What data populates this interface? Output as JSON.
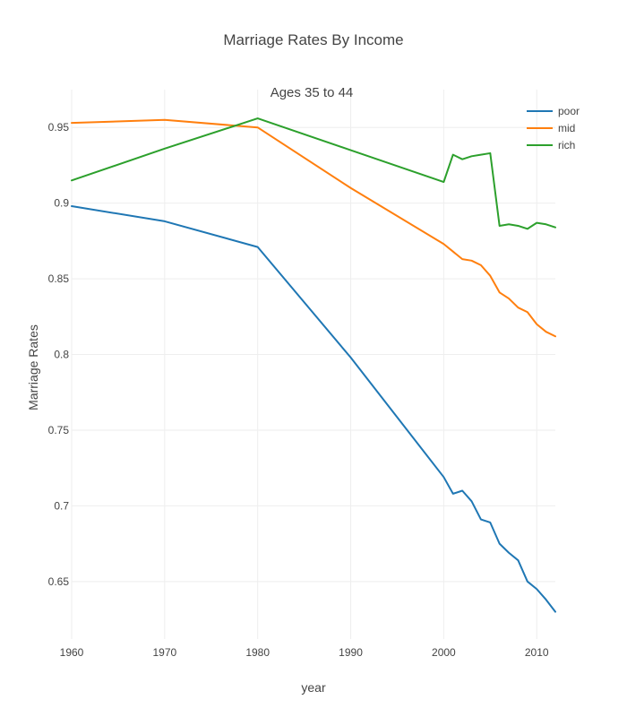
{
  "chart_data": {
    "type": "line",
    "title": "Marriage Rates By Income",
    "subtitle": "Ages 35 to 44",
    "xlabel": "year",
    "ylabel": "Marriage Rates",
    "xlim": [
      1960,
      2012
    ],
    "ylim": [
      0.612,
      0.975
    ],
    "x_ticks": [
      1960,
      1970,
      1980,
      1990,
      2000,
      2010
    ],
    "y_ticks": [
      0.65,
      0.7,
      0.75,
      0.8,
      0.85,
      0.9,
      0.95
    ],
    "y_tick_labels": [
      "0.65",
      "0.7",
      "0.75",
      "0.8",
      "0.85",
      "0.9",
      "0.95"
    ],
    "grid": true,
    "legend_position": "top-right",
    "x": [
      1960,
      1970,
      1980,
      1990,
      2000,
      2001,
      2002,
      2003,
      2004,
      2005,
      2006,
      2007,
      2008,
      2009,
      2010,
      2011,
      2012
    ],
    "series": [
      {
        "name": "poor",
        "color": "#1f77b4",
        "values": [
          0.898,
          0.888,
          0.871,
          0.798,
          0.719,
          0.708,
          0.71,
          0.703,
          0.691,
          0.689,
          0.675,
          0.669,
          0.664,
          0.65,
          0.645,
          0.638,
          0.63
        ]
      },
      {
        "name": "mid",
        "color": "#ff7f0e",
        "values": [
          0.953,
          0.955,
          0.95,
          0.91,
          0.873,
          0.868,
          0.863,
          0.862,
          0.859,
          0.852,
          0.841,
          0.837,
          0.831,
          0.828,
          0.82,
          0.815,
          0.812
        ]
      },
      {
        "name": "rich",
        "color": "#2ca02c",
        "values": [
          0.915,
          0.936,
          0.956,
          0.935,
          0.914,
          0.932,
          0.929,
          0.931,
          0.932,
          0.933,
          0.885,
          0.886,
          0.885,
          0.883,
          0.887,
          0.886,
          0.884
        ]
      }
    ]
  }
}
